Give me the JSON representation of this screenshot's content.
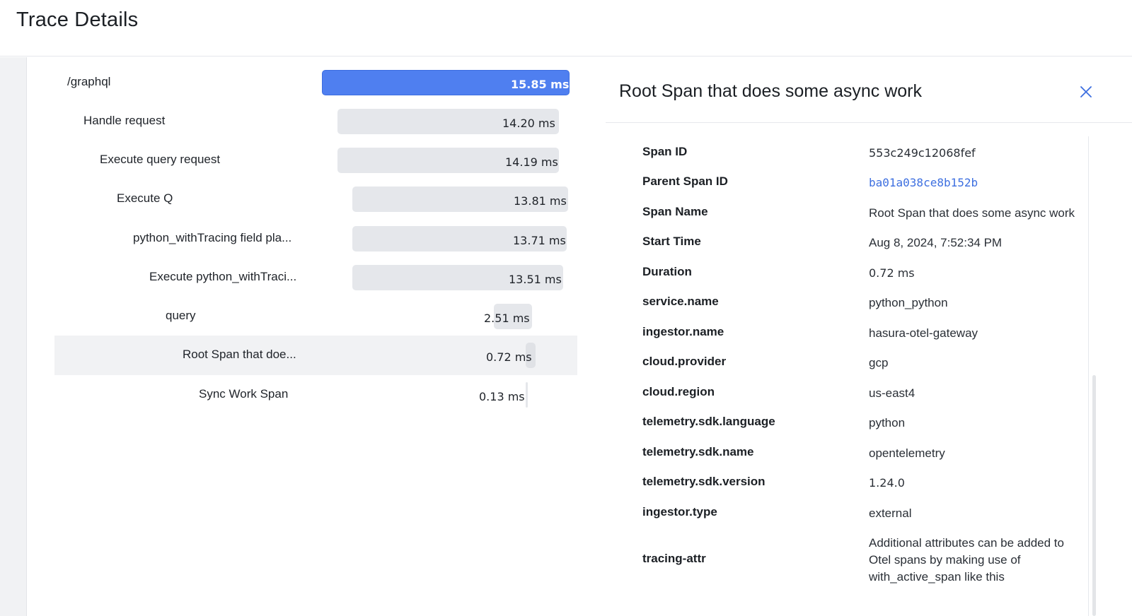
{
  "header": {
    "title": "Trace Details"
  },
  "spans": [
    {
      "name": "/graphql",
      "duration": "15.85 ms"
    },
    {
      "name": "Handle request",
      "duration": "14.20 ms"
    },
    {
      "name": "Execute query request",
      "duration": "14.19 ms"
    },
    {
      "name": "Execute Q",
      "duration": "13.81 ms"
    },
    {
      "name": "python_withTracing field pla...",
      "duration": "13.71 ms"
    },
    {
      "name": "Execute python_withTraci...",
      "duration": "13.51 ms"
    },
    {
      "name": "query",
      "duration": "2.51 ms"
    },
    {
      "name": "Root Span that doe...",
      "duration": "0.72 ms",
      "selected": true
    },
    {
      "name": "Sync Work Span",
      "duration": "0.13 ms"
    }
  ],
  "detail": {
    "title": "Root Span that does some async work",
    "close_icon": "close-icon",
    "attributes": [
      {
        "key": "Span ID",
        "value": "553c249c12068fef"
      },
      {
        "key": "Parent Span ID",
        "value": "ba01a038ce8b152b"
      },
      {
        "key": "Span Name",
        "value": "Root Span that does some async work"
      },
      {
        "key": "Start Time",
        "value": "Aug 8, 2024, 7:52:34 PM"
      },
      {
        "key": "Duration",
        "value": "0.72 ms"
      },
      {
        "key": "service.name",
        "value": "python_python"
      },
      {
        "key": "ingestor.name",
        "value": "hasura-otel-gateway"
      },
      {
        "key": "cloud.provider",
        "value": "gcp"
      },
      {
        "key": "cloud.region",
        "value": "us-east4"
      },
      {
        "key": "telemetry.sdk.language",
        "value": "python"
      },
      {
        "key": "telemetry.sdk.name",
        "value": "opentelemetry"
      },
      {
        "key": "telemetry.sdk.version",
        "value": "1.24.0"
      },
      {
        "key": "ingestor.type",
        "value": "external"
      },
      {
        "key": "tracing-attr",
        "value": "Additional attributes can be added to Otel spans by making use of with_active_span like this"
      }
    ]
  },
  "colors": {
    "root_bar": "#4f7ff0",
    "bar": "#e5e7eb",
    "link": "#3d6fe0",
    "selected_row": "#f1f2f4"
  }
}
